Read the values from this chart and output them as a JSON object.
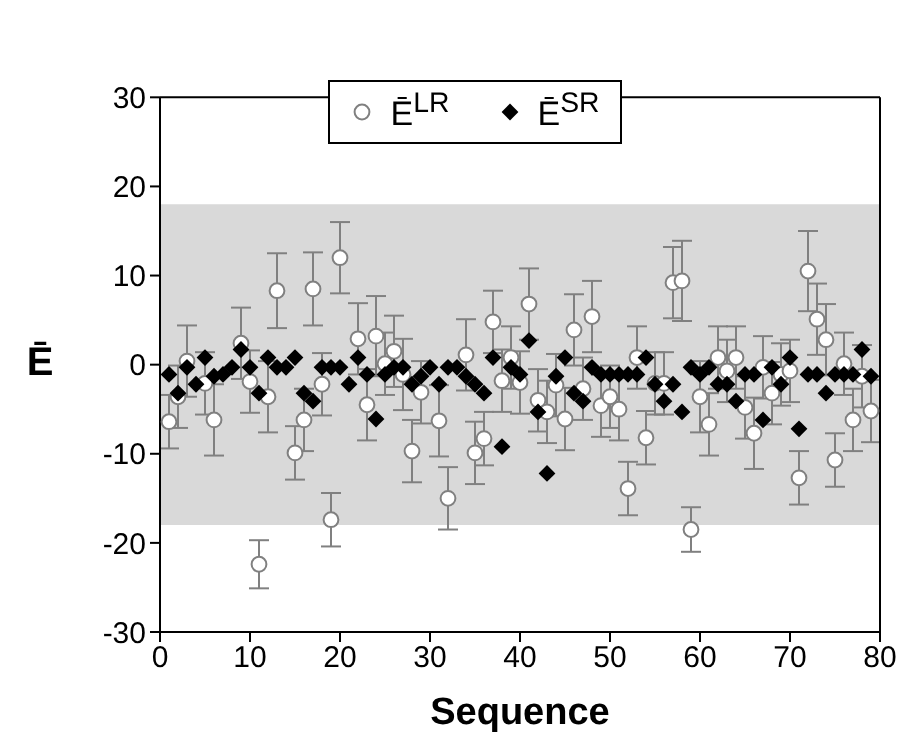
{
  "chart_data": {
    "type": "scatter",
    "xlabel": "Sequence",
    "ylabel": "Ē",
    "xlim": [
      0,
      80
    ],
    "xticks": [
      0,
      10,
      20,
      30,
      40,
      50,
      60,
      70,
      80
    ],
    "ylim": [
      -30,
      30
    ],
    "yticks": [
      -30,
      -20,
      -10,
      0,
      10,
      20,
      30
    ],
    "grid": false,
    "legend": "top",
    "bands": [
      {
        "axis": "y",
        "from": -18,
        "to": 18,
        "color": "#d9d9d9"
      }
    ],
    "series": [
      {
        "name": "Ē$^{LR}$",
        "color": "#ffffff",
        "marker": "circle",
        "x": [
          1,
          2,
          3,
          5,
          6,
          9,
          10,
          11,
          12,
          13,
          15,
          16,
          17,
          18,
          19,
          20,
          22,
          23,
          24,
          25,
          26,
          27,
          28,
          29,
          31,
          32,
          34,
          35,
          36,
          37,
          38,
          39,
          40,
          41,
          42,
          43,
          44,
          45,
          46,
          47,
          48,
          49,
          50,
          51,
          52,
          53,
          54,
          55,
          56,
          57,
          58,
          59,
          60,
          61,
          62,
          63,
          64,
          65,
          66,
          67,
          68,
          69,
          70,
          71,
          72,
          73,
          74,
          75,
          76,
          77,
          78,
          79
        ],
        "values": [
          -6.4,
          -3.6,
          0.4,
          -2.1,
          -6.2,
          2.4,
          -1.9,
          -22.4,
          -3.6,
          8.3,
          -9.9,
          -6.2,
          8.5,
          -2.2,
          -17.4,
          12.0,
          2.9,
          -4.5,
          3.2,
          0.1,
          1.5,
          -1.1,
          -9.7,
          -3.1,
          -6.3,
          -15.0,
          1.1,
          -9.9,
          -8.3,
          4.8,
          -1.8,
          0.8,
          -2.0,
          6.8,
          -4.0,
          -5.3,
          -2.3,
          -6.1,
          3.9,
          -2.7,
          5.4,
          -4.6,
          -3.6,
          -5.0,
          -13.9,
          0.8,
          -8.2,
          -2.1,
          -2.1,
          9.2,
          9.4,
          -18.5,
          -3.6,
          -6.7,
          0.8,
          -0.7,
          0.8,
          -4.8,
          -7.7,
          -0.3,
          -3.2,
          -1.1,
          -0.7,
          -12.7,
          10.5,
          5.1,
          2.8,
          -10.7,
          0.1,
          -6.2,
          -1.3,
          -5.2
        ],
        "errors": [
          3,
          3.5,
          4,
          3.5,
          4,
          4,
          3.5,
          2.7,
          4,
          4.2,
          3,
          3.5,
          4.1,
          3.5,
          3,
          4,
          4,
          4,
          4.5,
          3.5,
          4,
          4,
          3.5,
          3.5,
          4,
          3.5,
          4,
          3.5,
          3,
          3.5,
          3.5,
          3.5,
          3.5,
          4,
          3.5,
          3.5,
          3.5,
          3.5,
          4,
          3.5,
          4,
          3.5,
          3.5,
          3.5,
          3,
          3.5,
          3,
          3.5,
          3.5,
          4,
          4.5,
          2.5,
          4,
          3.5,
          3.5,
          3.5,
          3.5,
          3.5,
          4,
          3.5,
          3.5,
          3.5,
          3.5,
          3,
          4.5,
          4,
          4,
          3,
          3.5,
          3.5,
          3.5,
          3.5
        ]
      },
      {
        "name": "Ē$^{SR}$",
        "color": "#000000",
        "marker": "diamond",
        "x": [
          1,
          2,
          3,
          4,
          5,
          6,
          7,
          8,
          9,
          10,
          11,
          12,
          13,
          14,
          15,
          16,
          17,
          18,
          19,
          20,
          21,
          22,
          23,
          24,
          25,
          26,
          27,
          28,
          29,
          30,
          31,
          32,
          33,
          34,
          35,
          36,
          37,
          38,
          39,
          40,
          41,
          42,
          43,
          44,
          45,
          46,
          47,
          48,
          49,
          50,
          51,
          52,
          53,
          54,
          55,
          56,
          57,
          58,
          59,
          60,
          61,
          62,
          63,
          64,
          65,
          66,
          67,
          68,
          69,
          70,
          71,
          72,
          73,
          74,
          75,
          76,
          77,
          78,
          79
        ],
        "values": [
          -1.1,
          -3.2,
          -0.3,
          -2.2,
          0.8,
          -1.3,
          -1.1,
          -0.3,
          1.7,
          -0.3,
          -3.2,
          0.8,
          -0.3,
          -0.3,
          0.8,
          -3.2,
          -4.1,
          -0.3,
          -0.3,
          -0.3,
          -2.2,
          0.8,
          -1.1,
          -6.1,
          -1.1,
          -0.3,
          -0.3,
          -2.2,
          -1.3,
          -0.3,
          -2.2,
          -0.3,
          -0.3,
          -1.3,
          -2.2,
          -3.2,
          0.8,
          -9.2,
          -0.3,
          -1.1,
          2.7,
          -5.3,
          -12.2,
          -1.3,
          0.8,
          -3.2,
          -4.1,
          -0.3,
          -1.1,
          -1.1,
          -1.1,
          -1.1,
          -1.1,
          0.8,
          -2.2,
          -4.1,
          -2.2,
          -5.3,
          -0.3,
          -1.1,
          -0.3,
          -2.2,
          -2.2,
          -4.1,
          -1.1,
          -1.1,
          -6.2,
          -0.3,
          -2.2,
          0.8,
          -7.2,
          -1.1,
          -1.1,
          -3.2,
          -1.1,
          -1.1,
          -1.1,
          1.7,
          -1.3
        ]
      }
    ]
  }
}
